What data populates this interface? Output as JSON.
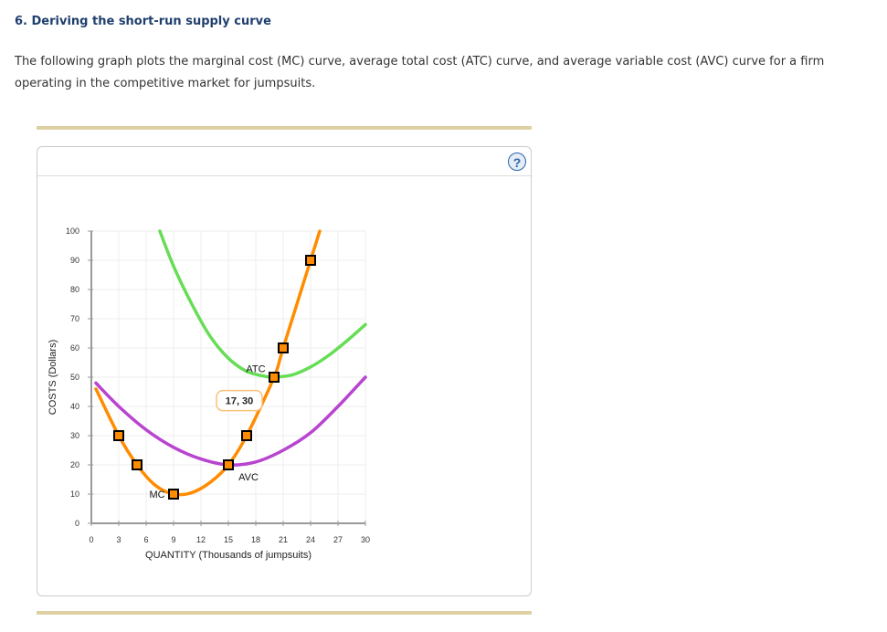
{
  "page": {
    "title": "6. Deriving the short-run supply curve",
    "intro": "The following graph plots the marginal cost (MC) curve, average total cost (ATC) curve, and average variable cost (AVC) curve for a firm operating in the competitive market for jumpsuits."
  },
  "panel": {
    "help_label": "?"
  },
  "colors": {
    "mc": "#ff8c00",
    "atc": "#66dd55",
    "avc": "#b844d0",
    "rule": "#ddd1a3",
    "title": "#1f3f6e"
  },
  "chart_data": {
    "type": "line",
    "title": "",
    "xlabel": "QUANTITY (Thousands of jumpsuits)",
    "ylabel": "COSTS (Dollars)",
    "xlim": [
      0,
      30
    ],
    "ylim": [
      0,
      100
    ],
    "xticks": [
      0,
      3,
      6,
      9,
      12,
      15,
      18,
      21,
      24,
      27,
      30
    ],
    "yticks": [
      0,
      10,
      20,
      30,
      40,
      50,
      60,
      70,
      80,
      90,
      100
    ],
    "grid": true,
    "series": [
      {
        "name": "MC",
        "color": "#ff8c00",
        "curve": [
          [
            0.5,
            46
          ],
          [
            3,
            30
          ],
          [
            5,
            20
          ],
          [
            7,
            13
          ],
          [
            9,
            10
          ],
          [
            11,
            10.5
          ],
          [
            13,
            14
          ],
          [
            15,
            20
          ],
          [
            17,
            30
          ],
          [
            20,
            50
          ],
          [
            21,
            60
          ],
          [
            24,
            90
          ],
          [
            25,
            100
          ]
        ],
        "points": [
          [
            3,
            30
          ],
          [
            5,
            20
          ],
          [
            9,
            10
          ],
          [
            15,
            20
          ],
          [
            17,
            30
          ],
          [
            20,
            50
          ],
          [
            21,
            60
          ],
          [
            24,
            90
          ]
        ]
      },
      {
        "name": "ATC",
        "color": "#66dd55",
        "curve": [
          [
            7.5,
            100
          ],
          [
            9,
            88
          ],
          [
            11,
            75
          ],
          [
            13,
            64
          ],
          [
            15,
            56.5
          ],
          [
            17,
            52
          ],
          [
            19,
            50.3
          ],
          [
            20,
            50
          ],
          [
            22,
            50.8
          ],
          [
            24,
            53.5
          ],
          [
            26,
            57.5
          ],
          [
            28,
            62.5
          ],
          [
            30,
            68
          ]
        ]
      },
      {
        "name": "AVC",
        "color": "#b844d0",
        "curve": [
          [
            0.5,
            48
          ],
          [
            3,
            40
          ],
          [
            6,
            32
          ],
          [
            9,
            26
          ],
          [
            12,
            22
          ],
          [
            15,
            20
          ],
          [
            18,
            21
          ],
          [
            21,
            25
          ],
          [
            24,
            31
          ],
          [
            27,
            40
          ],
          [
            30,
            50
          ]
        ]
      }
    ],
    "annotations": [
      {
        "text": "MC",
        "x": 7.2,
        "y": 10
      },
      {
        "text": "ATC",
        "x": 18,
        "y": 53
      },
      {
        "text": "AVC",
        "x": 17.2,
        "y": 16
      },
      {
        "text": "17, 30",
        "x": 17,
        "y": 42,
        "type": "tooltip"
      }
    ]
  }
}
